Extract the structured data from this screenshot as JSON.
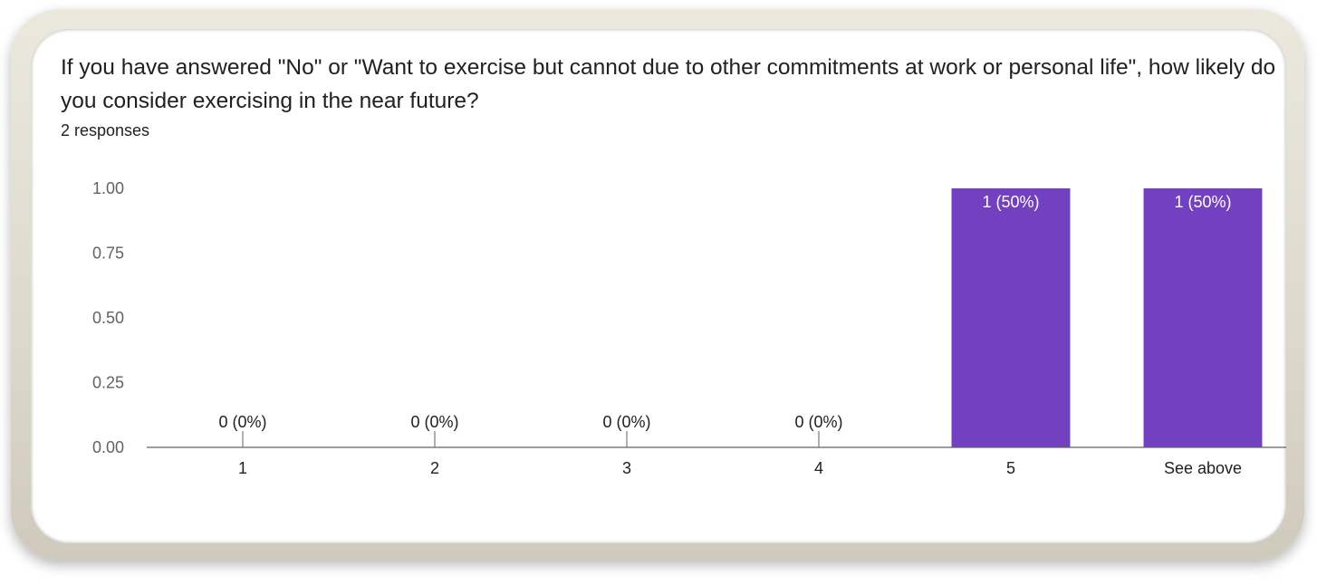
{
  "question": {
    "title": "If you have answered \"No\" or \"Want to exercise but cannot due to other commitments at work or personal life\", how likely do you consider exercising in the near future?",
    "responses": "2 responses"
  },
  "colors": {
    "bar": "#7340c2",
    "bar_label": "#ffffff",
    "axis_text": "#5f6368",
    "category_text": "#202124",
    "axis_line": "#5f6368"
  },
  "chart_data": {
    "type": "bar",
    "categories": [
      "1",
      "2",
      "3",
      "4",
      "5",
      "See above"
    ],
    "values": [
      0,
      0,
      0,
      0,
      1,
      1
    ],
    "data_labels": [
      "0 (0%)",
      "0 (0%)",
      "0 (0%)",
      "0 (0%)",
      "1 (50%)",
      "1 (50%)"
    ],
    "yticks": [
      "0.00",
      "0.25",
      "0.50",
      "0.75",
      "1.00"
    ],
    "ylim": [
      0,
      1
    ],
    "grid": false,
    "legend": "none"
  }
}
